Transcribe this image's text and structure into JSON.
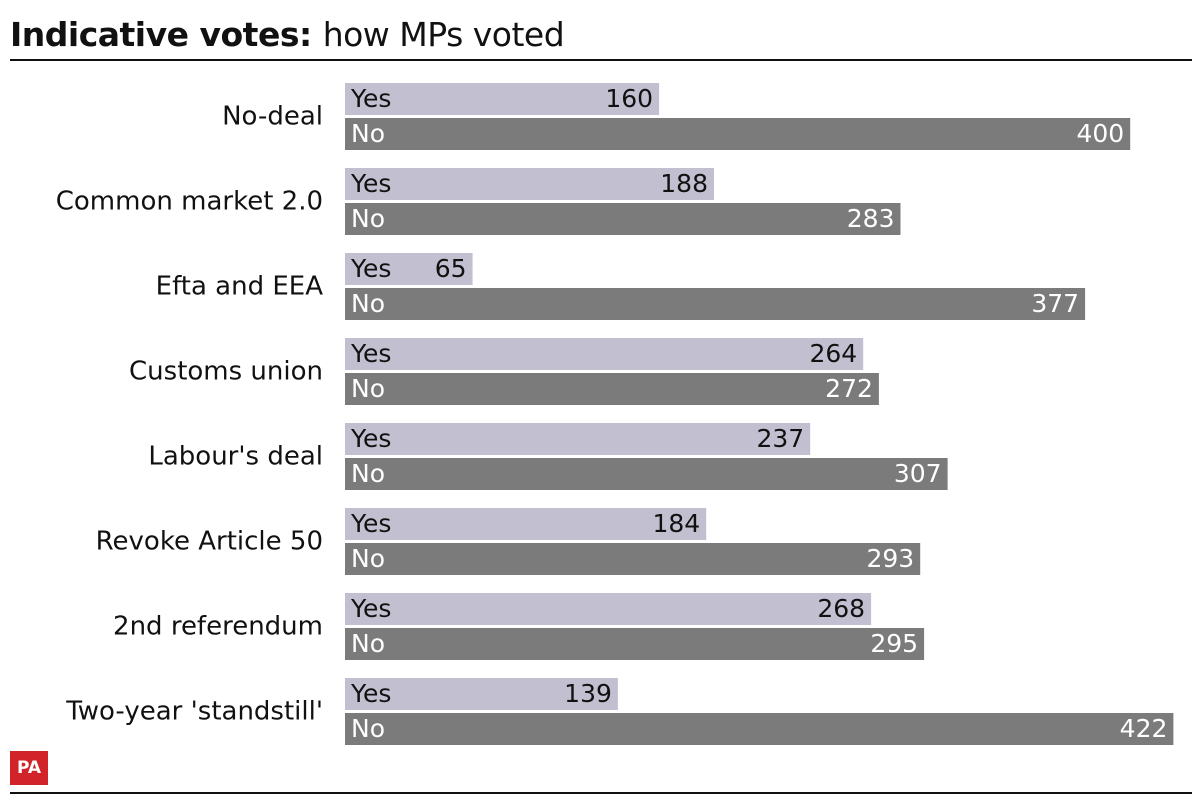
{
  "title_bold": "Indicative votes:",
  "title_rest": "how MPs voted",
  "logo_text": "PA",
  "colors": {
    "yes": "#c2c0d0",
    "no": "#7b7b7b",
    "text": "#111111",
    "logo": "#d2232a"
  },
  "chart_data": {
    "type": "bar",
    "orientation": "horizontal",
    "categories": [
      "No-deal",
      "Common market 2.0",
      "Efta and EEA",
      "Customs union",
      "Labour's deal",
      "Revoke Article 50",
      "2nd referendum",
      "Two-year 'standstill'"
    ],
    "series": [
      {
        "name": "Yes",
        "values": [
          160,
          188,
          65,
          264,
          237,
          184,
          268,
          139
        ]
      },
      {
        "name": "No",
        "values": [
          400,
          283,
          377,
          272,
          307,
          293,
          295,
          422
        ]
      }
    ],
    "xlim": [
      0,
      422
    ],
    "grid": false,
    "legend": "none"
  }
}
